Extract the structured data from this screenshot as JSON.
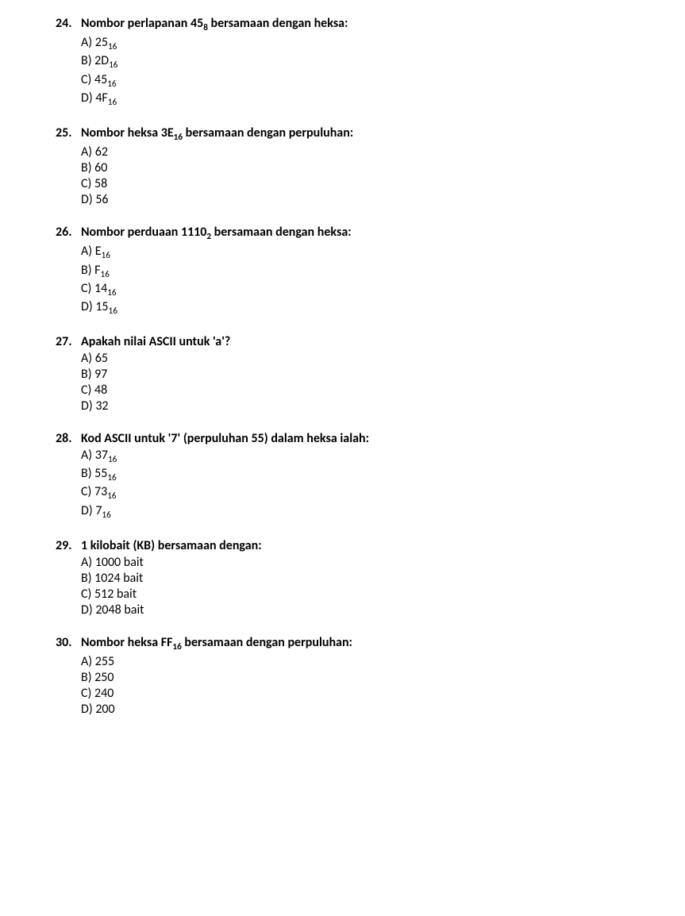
{
  "questions": [
    {
      "num": "24.",
      "text": "Nombor perlapanan 45₈ bersamaan dengan heksa:",
      "opts": [
        "A) 25₁₆",
        "B) 2D₁₆",
        "C) 45₁₆",
        "D) 4F₁₆"
      ]
    },
    {
      "num": "25.",
      "text": "Nombor heksa 3E₁₆ bersamaan dengan perpuluhan:",
      "opts": [
        "A) 62",
        "B) 60",
        "C) 58",
        "D) 56"
      ]
    },
    {
      "num": "26.",
      "text": "Nombor perduaan 1110₂ bersamaan dengan heksa:",
      "opts": [
        "A) E₁₆",
        "B) F₁₆",
        "C) 14₁₆",
        "D) 15₁₆"
      ]
    },
    {
      "num": "27.",
      "text": "Apakah nilai ASCII untuk 'a'?",
      "opts": [
        "A) 65",
        "B) 97",
        "C) 48",
        "D) 32"
      ]
    },
    {
      "num": "28.",
      "text": "Kod ASCII untuk '7' (perpuluhan 55) dalam heksa ialah:",
      "opts": [
        "A) 37₁₆",
        "B) 55₁₆",
        "C) 73₁₆",
        "D) 7₁₆"
      ]
    },
    {
      "num": "29.",
      "text": "1 kilobait (KB) bersamaan dengan:",
      "opts": [
        "A) 1000 bait",
        "B) 1024 bait",
        "C) 512 bait",
        "D) 2048 bait"
      ]
    },
    {
      "num": "30.",
      "text": "Nombor heksa FF₁₆ bersamaan dengan perpuluhan:",
      "opts": [
        "A) 255",
        "B) 250",
        "C) 240",
        "D) 200"
      ]
    }
  ]
}
